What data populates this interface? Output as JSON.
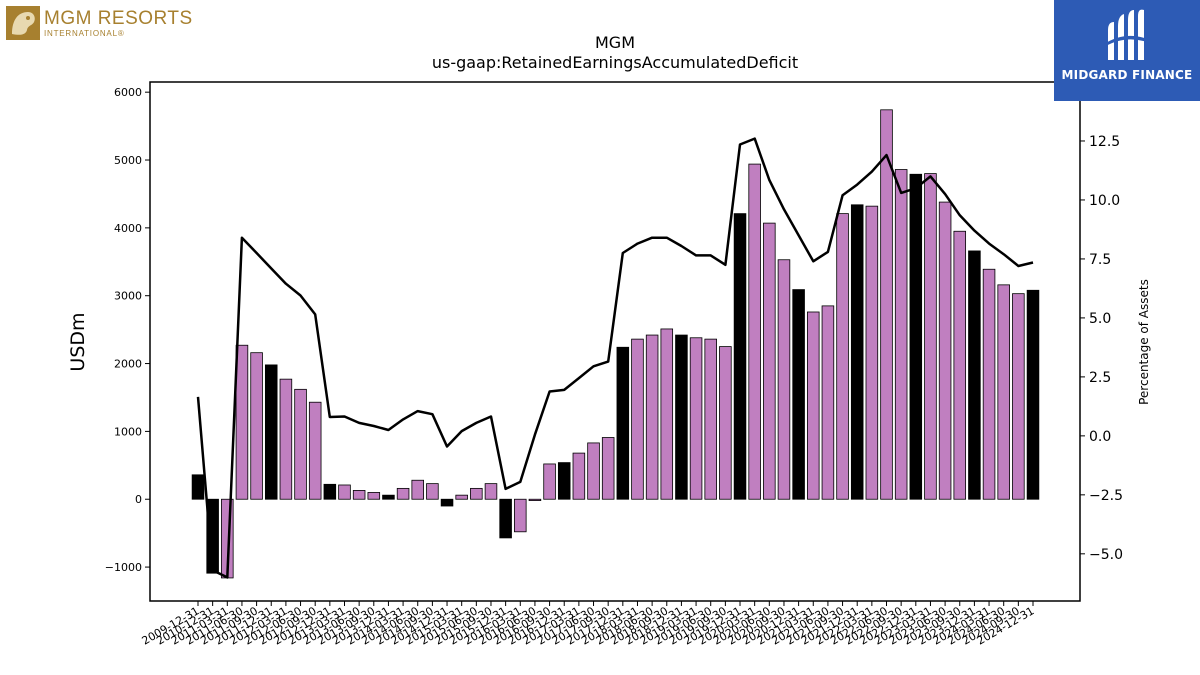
{
  "logos": {
    "left_line1": "MGM RESORTS",
    "left_line2": "INTERNATIONAL®",
    "right_name": "MIDGARD FINANCE"
  },
  "colors": {
    "bar_quarter": "#c07fc0",
    "bar_yearend": "#000000",
    "line": "#000000",
    "brand_blue": "#2d5bb5",
    "brand_gold": "#a7802f"
  },
  "chart_data": {
    "type": "bar",
    "title": "MGM",
    "subtitle": "us-gaap:RetainedEarningsAccumulatedDeficit",
    "ylabel": "USDm",
    "y2label": "Percentage of Assets",
    "ylim": [
      -1500,
      6150
    ],
    "y2lim": [
      -7.0,
      15.0
    ],
    "yticks": [
      -1000,
      0,
      1000,
      2000,
      3000,
      4000,
      5000,
      6000
    ],
    "y2ticks": [
      -5.0,
      -2.5,
      0.0,
      2.5,
      5.0,
      7.5,
      10.0,
      12.5
    ],
    "grid": false,
    "categories": [
      "2009-12-31",
      "2010-12-31",
      "2011-03-31",
      "2011-06-30",
      "2011-09-30",
      "2011-12-31",
      "2012-03-31",
      "2012-06-30",
      "2012-09-30",
      "2012-12-31",
      "2013-03-31",
      "2013-06-30",
      "2013-09-30",
      "2013-12-31",
      "2014-03-31",
      "2014-06-30",
      "2014-09-30",
      "2014-12-31",
      "2015-03-31",
      "2015-06-30",
      "2015-09-30",
      "2015-12-31",
      "2016-03-31",
      "2016-06-30",
      "2016-09-30",
      "2016-12-31",
      "2017-03-31",
      "2017-06-30",
      "2017-09-30",
      "2017-12-31",
      "2018-03-31",
      "2018-06-30",
      "2018-09-30",
      "2018-12-31",
      "2019-03-31",
      "2019-06-30",
      "2019-09-30",
      "2019-12-31",
      "2020-03-31",
      "2020-06-30",
      "2020-09-30",
      "2020-12-31",
      "2021-03-31",
      "2021-06-30",
      "2021-09-30",
      "2021-12-31",
      "2022-03-31",
      "2022-06-30",
      "2022-09-30",
      "2022-12-31",
      "2023-03-31",
      "2023-06-30",
      "2023-09-30",
      "2023-12-31",
      "2024-03-31",
      "2024-06-30",
      "2024-09-30",
      "2024-12-31"
    ],
    "series": [
      {
        "kind": "bar",
        "values": [
          360,
          -1090,
          -1160,
          2270,
          2160,
          1980,
          1770,
          1620,
          1430,
          220,
          210,
          130,
          100,
          60,
          160,
          280,
          230,
          -100,
          60,
          160,
          230,
          -570,
          -480,
          -20,
          520,
          540,
          680,
          830,
          910,
          2240,
          2360,
          2420,
          2510,
          2420,
          2380,
          2360,
          2250,
          4210,
          4940,
          4070,
          3530,
          3090,
          2760,
          2850,
          4210,
          4340,
          4320,
          5740,
          4860,
          4790,
          4800,
          4380,
          3950,
          3660,
          3390,
          3160,
          3030,
          3080
        ],
        "yearend": [
          true,
          true,
          false,
          false,
          false,
          true,
          false,
          false,
          false,
          true,
          false,
          false,
          false,
          true,
          false,
          false,
          false,
          true,
          false,
          false,
          false,
          true,
          false,
          false,
          false,
          true,
          false,
          false,
          false,
          true,
          false,
          false,
          false,
          true,
          false,
          false,
          false,
          true,
          false,
          false,
          false,
          true,
          false,
          false,
          false,
          true,
          false,
          false,
          false,
          true,
          false,
          false,
          false,
          true,
          false,
          false,
          false,
          true
        ]
      },
      {
        "kind": "line",
        "axis": "right",
        "values": [
          1.65,
          -5.7,
          -6.0,
          8.4,
          7.75,
          7.1,
          6.45,
          5.95,
          5.15,
          0.8,
          0.82,
          0.55,
          0.42,
          0.25,
          0.7,
          1.05,
          0.92,
          -0.45,
          0.2,
          0.55,
          0.82,
          -2.25,
          -1.95,
          0.05,
          1.88,
          1.95,
          2.45,
          2.95,
          3.15,
          7.75,
          8.15,
          8.4,
          8.4,
          8.05,
          7.65,
          7.65,
          7.25,
          12.35,
          12.6,
          10.85,
          9.6,
          8.5,
          7.4,
          7.8,
          10.2,
          10.65,
          11.2,
          11.9,
          10.3,
          10.5,
          11.0,
          10.25,
          9.35,
          8.7,
          8.15,
          7.7,
          7.2,
          7.35
        ]
      }
    ]
  }
}
